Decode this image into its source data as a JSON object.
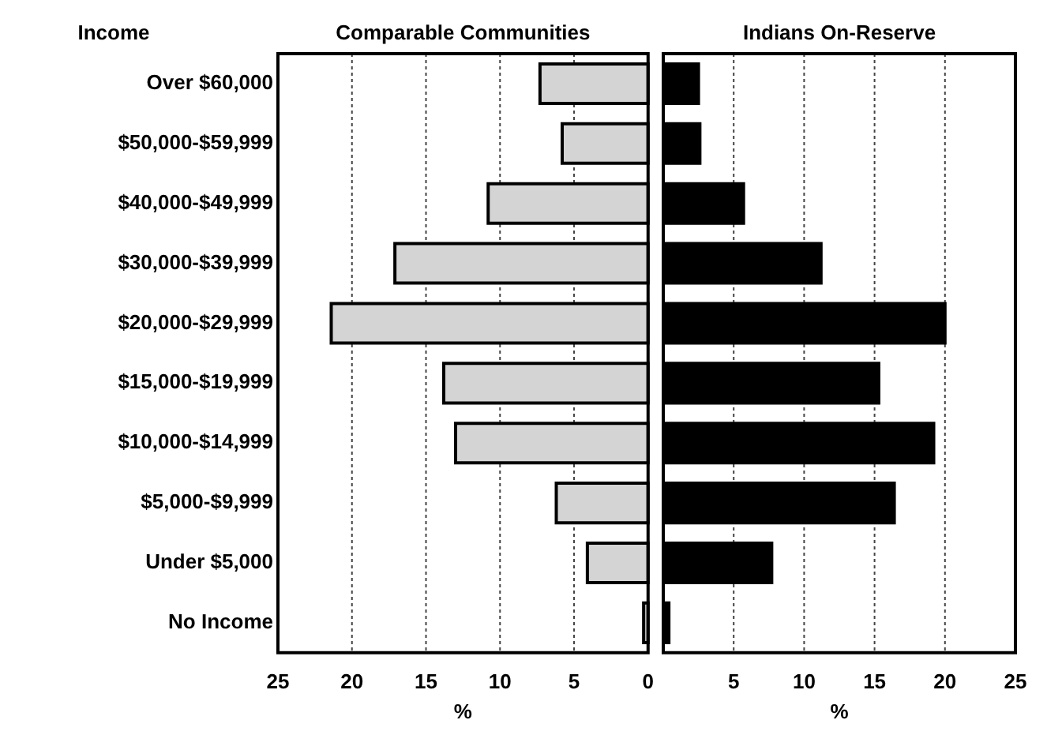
{
  "chart_data": [
    {
      "type": "bar",
      "orientation": "horizontal",
      "ylabel": "Income",
      "xlabel": "%",
      "categories": [
        "Over $60,000",
        "$50,000-$59,999",
        "$40,000-$49,999",
        "$30,000-$39,999",
        "$20,000-$29,999",
        "$15,000-$19,999",
        "$10,000-$14,999",
        "$5,000-$9,999",
        "Under $5,000",
        "No Income"
      ],
      "series": [
        {
          "name": "Comparable Communities",
          "color": "#d4d4d4",
          "values": [
            7.3,
            5.8,
            10.8,
            17.1,
            21.4,
            13.8,
            13.0,
            6.2,
            4.1,
            0.3
          ]
        }
      ],
      "xlim": [
        25,
        0
      ],
      "xticks": [
        25,
        20,
        15,
        10,
        5,
        0
      ],
      "grid": "x",
      "legend": false
    },
    {
      "type": "bar",
      "orientation": "horizontal",
      "xlabel": "%",
      "series": [
        {
          "name": "Indians On-Reserve",
          "color": "#000000",
          "values": [
            2.5,
            2.6,
            5.7,
            11.2,
            20.0,
            15.3,
            19.2,
            16.4,
            7.7,
            0.4
          ]
        }
      ],
      "xlim": [
        0,
        25
      ],
      "xticks": [
        {
          "value": 0,
          "label": null
        },
        5,
        10,
        15,
        20,
        25
      ],
      "grid": "x",
      "legend": false,
      "tick_labels": "x"
    }
  ]
}
